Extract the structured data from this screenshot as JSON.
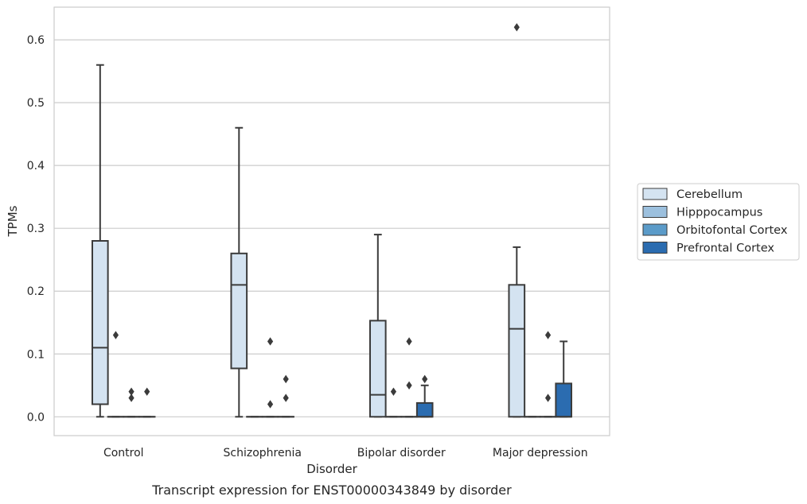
{
  "chart_data": {
    "type": "boxplot",
    "caption": "Transcript expression for ENST00000343849 by disorder",
    "xlabel": "Disorder",
    "ylabel": "TPMs",
    "ylim": [
      -0.03,
      0.652
    ],
    "yticks": [
      0.0,
      0.1,
      0.2,
      0.3,
      0.4,
      0.5,
      0.6
    ],
    "ytick_labels": [
      "0.0",
      "0.1",
      "0.2",
      "0.3",
      "0.4",
      "0.5",
      "0.6"
    ],
    "grid": true,
    "legend_position": "right",
    "categories": [
      "Control",
      "Schizophrenia",
      "Bipolar disorder",
      "Major depression"
    ],
    "series": [
      {
        "name": "Cerebellum",
        "color": "#d4e3f1",
        "boxes": [
          {
            "whisker_low": 0.0,
            "q1": 0.02,
            "median": 0.11,
            "q3": 0.28,
            "whisker_high": 0.56,
            "outliers": []
          },
          {
            "whisker_low": 0.0,
            "q1": 0.077,
            "median": 0.21,
            "q3": 0.26,
            "whisker_high": 0.46,
            "outliers": []
          },
          {
            "whisker_low": 0.0,
            "q1": 0.0,
            "median": 0.035,
            "q3": 0.153,
            "whisker_high": 0.29,
            "outliers": []
          },
          {
            "whisker_low": 0.0,
            "q1": 0.0,
            "median": 0.14,
            "q3": 0.21,
            "whisker_high": 0.27,
            "outliers": [
              0.62
            ]
          }
        ]
      },
      {
        "name": "Hipppocampus",
        "color": "#9cc0de",
        "boxes": [
          {
            "whisker_low": 0.0,
            "q1": 0.0,
            "median": 0.0,
            "q3": 0.0,
            "whisker_high": 0.0,
            "outliers": [
              0.13
            ]
          },
          {
            "whisker_low": 0.0,
            "q1": 0.0,
            "median": 0.0,
            "q3": 0.0,
            "whisker_high": 0.0,
            "outliers": []
          },
          {
            "whisker_low": 0.0,
            "q1": 0.0,
            "median": 0.0,
            "q3": 0.0,
            "whisker_high": 0.0,
            "outliers": [
              0.04
            ]
          },
          {
            "whisker_low": 0.0,
            "q1": 0.0,
            "median": 0.0,
            "q3": 0.0,
            "whisker_high": 0.0,
            "outliers": []
          }
        ]
      },
      {
        "name": "Orbitofontal Cortex",
        "color": "#5b9bc9",
        "boxes": [
          {
            "whisker_low": 0.0,
            "q1": 0.0,
            "median": 0.0,
            "q3": 0.0,
            "whisker_high": 0.0,
            "outliers": [
              0.03,
              0.04
            ]
          },
          {
            "whisker_low": 0.0,
            "q1": 0.0,
            "median": 0.0,
            "q3": 0.0,
            "whisker_high": 0.0,
            "outliers": [
              0.02,
              0.12
            ]
          },
          {
            "whisker_low": 0.0,
            "q1": 0.0,
            "median": 0.0,
            "q3": 0.0,
            "whisker_high": 0.0,
            "outliers": [
              0.05,
              0.12
            ]
          },
          {
            "whisker_low": 0.0,
            "q1": 0.0,
            "median": 0.0,
            "q3": 0.0,
            "whisker_high": 0.0,
            "outliers": [
              0.03,
              0.13
            ]
          }
        ]
      },
      {
        "name": "Prefrontal Cortex",
        "color": "#2b6cb0",
        "boxes": [
          {
            "whisker_low": 0.0,
            "q1": 0.0,
            "median": 0.0,
            "q3": 0.0,
            "whisker_high": 0.0,
            "outliers": [
              0.04
            ]
          },
          {
            "whisker_low": 0.0,
            "q1": 0.0,
            "median": 0.0,
            "q3": 0.0,
            "whisker_high": 0.0,
            "outliers": [
              0.03,
              0.06
            ]
          },
          {
            "whisker_low": 0.0,
            "q1": 0.0,
            "median": 0.0,
            "q3": 0.022,
            "whisker_high": 0.05,
            "outliers": [
              0.06
            ]
          },
          {
            "whisker_low": 0.0,
            "q1": 0.0,
            "median": 0.0,
            "q3": 0.053,
            "whisker_high": 0.12,
            "outliers": []
          }
        ]
      }
    ]
  }
}
